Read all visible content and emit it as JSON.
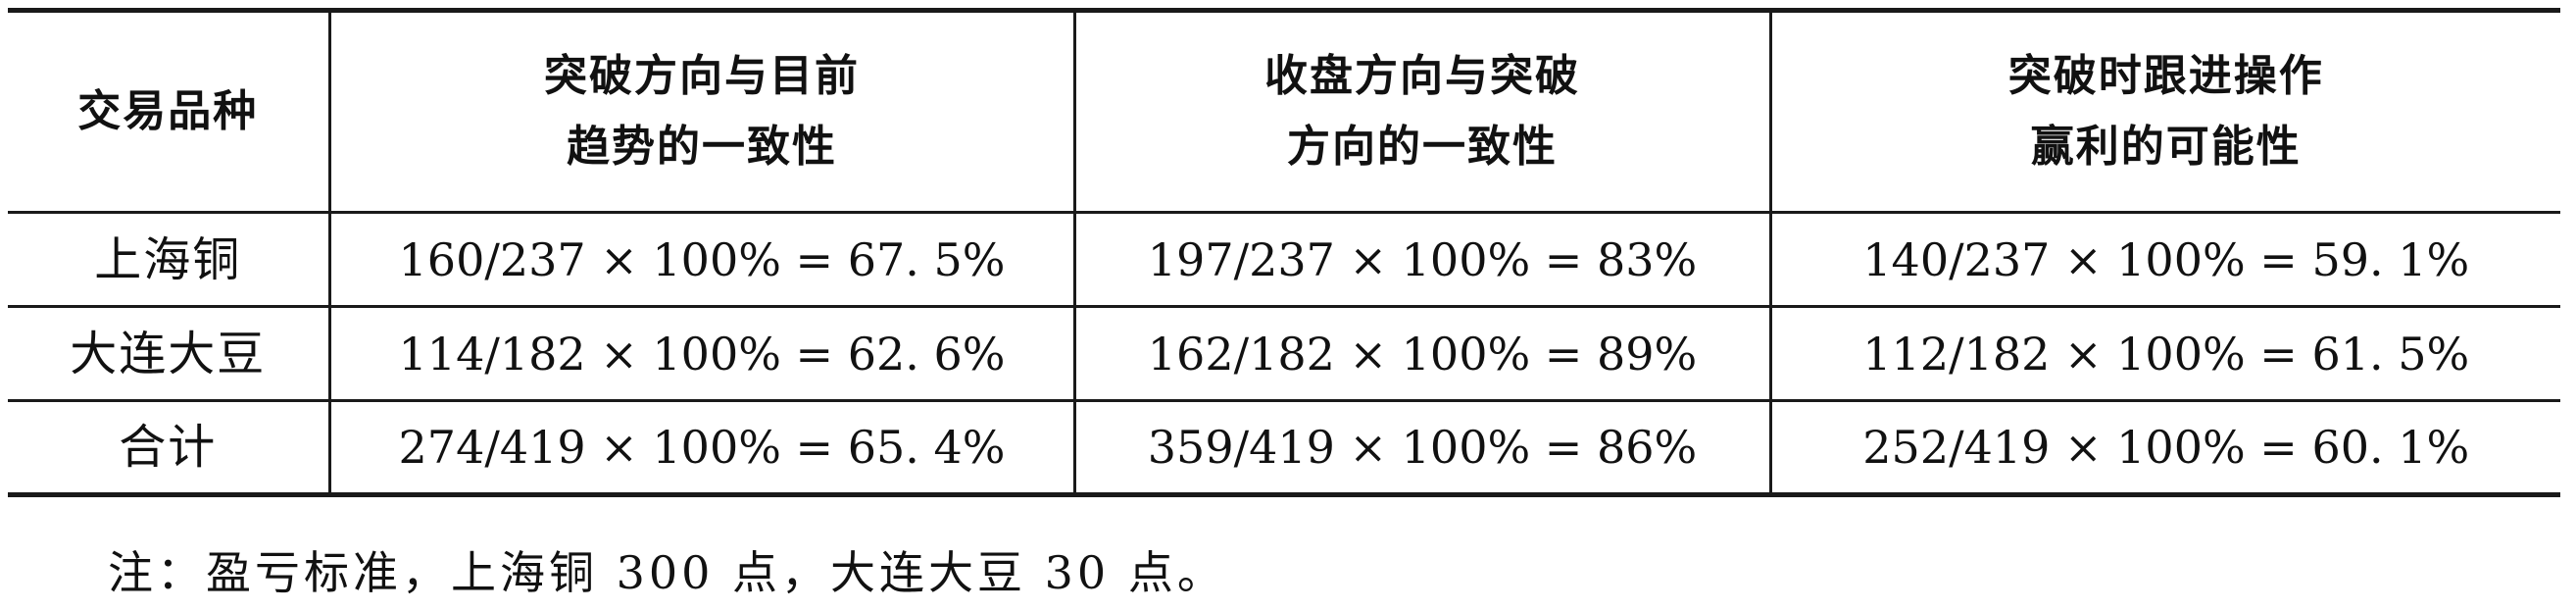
{
  "table": {
    "headers": [
      [
        "交易品种"
      ],
      [
        "突破方向与目前",
        "趋势的一致性"
      ],
      [
        "收盘方向与突破",
        "方向的一致性"
      ],
      [
        "突破时跟进操作",
        "赢利的可能性"
      ]
    ],
    "rows": [
      [
        "上海铜",
        "160/237 × 100% = 67. 5%",
        "197/237 × 100% = 83%",
        "140/237 × 100% = 59. 1%"
      ],
      [
        "大连大豆",
        "114/182 × 100% = 62. 6%",
        "162/182 × 100% = 89%",
        "112/182 × 100% = 61. 5%"
      ],
      [
        "合计",
        "274/419 × 100% = 65. 4%",
        "359/419 × 100% = 86%",
        "252/419 × 100% = 60. 1%"
      ]
    ]
  },
  "note": "注：盈亏标准，上海铜 300 点，大连大豆 30 点。"
}
